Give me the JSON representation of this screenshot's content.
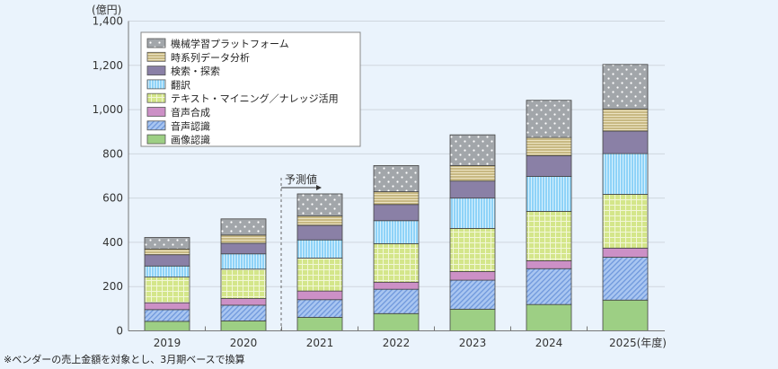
{
  "chart_data": {
    "type": "bar",
    "stacked": true,
    "unit_label": "(億円)",
    "categories": [
      "2019",
      "2020",
      "2021",
      "2022",
      "2023",
      "2024",
      "2025"
    ],
    "last_category_suffix": "(年度)",
    "ylim": [
      0,
      1400
    ],
    "yticks": [
      0,
      200,
      400,
      600,
      800,
      1000,
      1200,
      1400
    ],
    "ytick_labels": [
      "0",
      "200",
      "400",
      "600",
      "800",
      "1,000",
      "1,200",
      "1,400"
    ],
    "grid": true,
    "legend_position": "top-left",
    "forecast_label": "予測値",
    "forecast_from": "2021",
    "series": [
      {
        "name": "画像認識",
        "color": "#9dcf84",
        "pattern": "solid",
        "values": [
          43,
          45,
          61,
          78,
          98,
          119,
          139
        ]
      },
      {
        "name": "音声認識",
        "color": "#a9c6f1",
        "pattern": "diagonal",
        "values": [
          53,
          71,
          80,
          110,
          131,
          162,
          194
        ]
      },
      {
        "name": "音声合成",
        "color": "#cc90c6",
        "pattern": "solid",
        "values": [
          31,
          30,
          39,
          32,
          39,
          36,
          41
        ]
      },
      {
        "name": "テキスト・マイニング／ナレッジ活用",
        "color": "#d4e68a",
        "pattern": "grid",
        "values": [
          116,
          133,
          149,
          174,
          195,
          223,
          243
        ]
      },
      {
        "name": "翻訳",
        "color": "#8fd3f8",
        "pattern": "vertical",
        "values": [
          50,
          69,
          82,
          104,
          137,
          158,
          184
        ]
      },
      {
        "name": "検索・探索",
        "color": "#8a80a6",
        "pattern": "solid",
        "values": [
          51,
          48,
          66,
          73,
          77,
          94,
          102
        ]
      },
      {
        "name": "時系列データ分析",
        "color": "#c8b983",
        "pattern": "horizontal",
        "values": [
          26,
          37,
          42,
          58,
          70,
          82,
          100
        ]
      },
      {
        "name": "機械学習プラットフォーム",
        "color": "#a2a6aa",
        "pattern": "dots",
        "values": [
          52,
          73,
          100,
          118,
          139,
          168,
          201
        ]
      }
    ],
    "footnote": "※ベンダーの売上金額を対象とし、3月期ベースで換算"
  }
}
